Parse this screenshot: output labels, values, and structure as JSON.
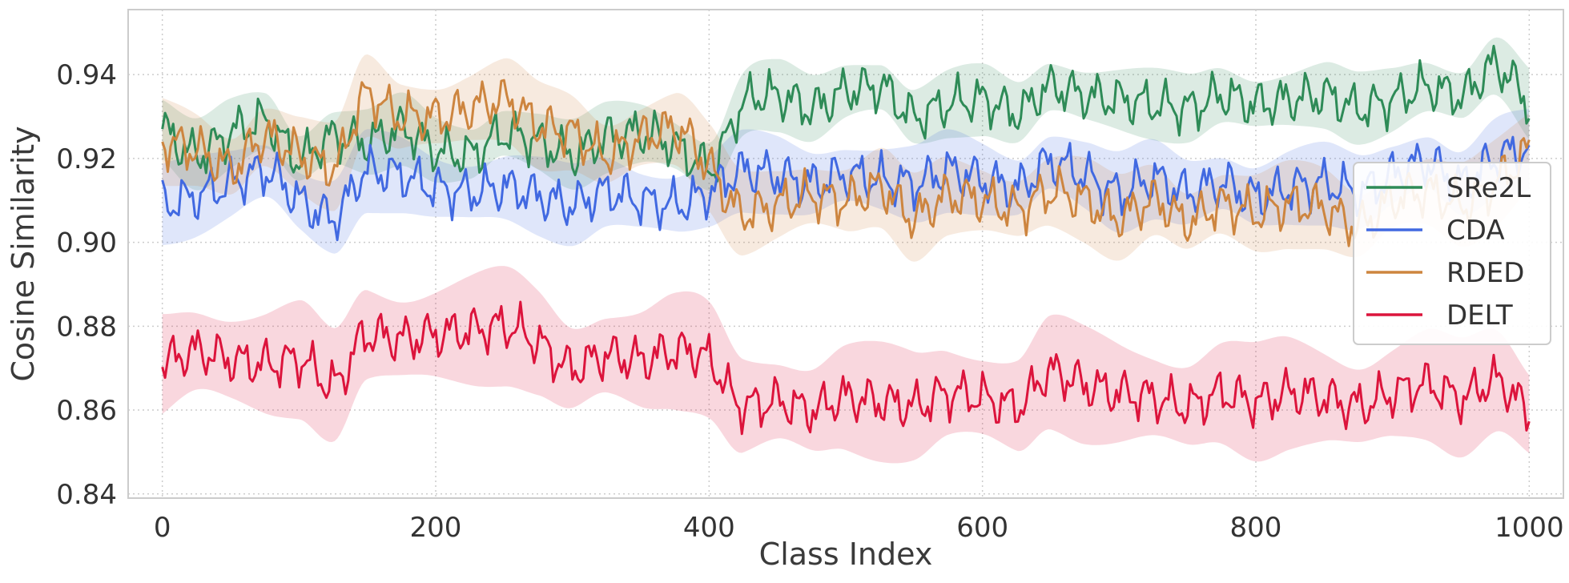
{
  "chart_data": {
    "type": "line",
    "title": "",
    "xlabel": "Class Index",
    "ylabel": "Cosine Similarity",
    "xlim": [
      -25,
      1025
    ],
    "ylim": [
      0.839,
      0.9555
    ],
    "xticks": [
      0,
      200,
      400,
      600,
      800,
      1000
    ],
    "xtick_labels": [
      "0",
      "200",
      "400",
      "600",
      "800",
      "1000"
    ],
    "yticks": [
      0.84,
      0.86,
      0.88,
      0.9,
      0.92,
      0.94
    ],
    "ytick_labels": [
      "0.84",
      "0.86",
      "0.88",
      "0.90",
      "0.92",
      "0.94"
    ],
    "grid": true,
    "grid_style": "dotted",
    "legend_position": "right",
    "shaded_band": "variability band around each series",
    "series": [
      {
        "name": "SRe2L",
        "color": "#2e8b57",
        "band_halfwidth": 0.007,
        "x": [
          0,
          25,
          50,
          75,
          100,
          125,
          150,
          175,
          200,
          225,
          250,
          275,
          300,
          325,
          350,
          375,
          400,
          425,
          450,
          475,
          500,
          525,
          550,
          575,
          600,
          625,
          650,
          675,
          700,
          725,
          750,
          775,
          800,
          825,
          850,
          875,
          900,
          925,
          950,
          975,
          1000
        ],
        "values": [
          0.927,
          0.921,
          0.926,
          0.929,
          0.92,
          0.925,
          0.924,
          0.927,
          0.922,
          0.921,
          0.926,
          0.924,
          0.921,
          0.925,
          0.926,
          0.923,
          0.918,
          0.933,
          0.935,
          0.932,
          0.936,
          0.937,
          0.93,
          0.933,
          0.934,
          0.931,
          0.937,
          0.935,
          0.934,
          0.933,
          0.932,
          0.935,
          0.933,
          0.934,
          0.935,
          0.932,
          0.934,
          0.937,
          0.935,
          0.942,
          0.933
        ]
      },
      {
        "name": "CDA",
        "color": "#4169e1",
        "band_halfwidth": 0.008,
        "x": [
          0,
          25,
          50,
          75,
          100,
          125,
          150,
          175,
          200,
          225,
          250,
          275,
          300,
          325,
          350,
          375,
          400,
          425,
          450,
          475,
          500,
          525,
          550,
          575,
          600,
          625,
          650,
          675,
          700,
          725,
          750,
          775,
          800,
          825,
          850,
          875,
          900,
          925,
          950,
          975,
          1000
        ],
        "values": [
          0.909,
          0.911,
          0.914,
          0.917,
          0.91,
          0.906,
          0.917,
          0.916,
          0.913,
          0.912,
          0.913,
          0.911,
          0.909,
          0.912,
          0.91,
          0.909,
          0.912,
          0.917,
          0.916,
          0.914,
          0.916,
          0.915,
          0.914,
          0.917,
          0.915,
          0.913,
          0.919,
          0.916,
          0.912,
          0.915,
          0.912,
          0.914,
          0.911,
          0.913,
          0.914,
          0.912,
          0.916,
          0.919,
          0.914,
          0.92,
          0.922
        ]
      },
      {
        "name": "RDED",
        "color": "#cd853f",
        "band_halfwidth": 0.0085,
        "x": [
          0,
          25,
          50,
          75,
          100,
          125,
          150,
          175,
          200,
          225,
          250,
          275,
          300,
          325,
          350,
          375,
          400,
          425,
          450,
          475,
          500,
          525,
          550,
          575,
          600,
          625,
          650,
          675,
          700,
          725,
          750,
          775,
          800,
          825,
          850,
          875,
          900,
          925,
          950,
          975,
          1000
        ],
        "values": [
          0.924,
          0.922,
          0.918,
          0.925,
          0.921,
          0.918,
          0.935,
          0.93,
          0.93,
          0.932,
          0.934,
          0.928,
          0.926,
          0.921,
          0.925,
          0.927,
          0.918,
          0.907,
          0.909,
          0.911,
          0.91,
          0.913,
          0.906,
          0.911,
          0.91,
          0.908,
          0.912,
          0.91,
          0.906,
          0.91,
          0.905,
          0.909,
          0.907,
          0.909,
          0.908,
          0.904,
          0.91,
          0.912,
          0.909,
          0.914,
          0.922
        ]
      },
      {
        "name": "DELT",
        "color": "#dc143c",
        "band_halfwidth": 0.0115,
        "x": [
          0,
          25,
          50,
          75,
          100,
          125,
          150,
          175,
          200,
          225,
          250,
          275,
          300,
          325,
          350,
          375,
          400,
          425,
          450,
          475,
          500,
          525,
          550,
          575,
          600,
          625,
          650,
          675,
          700,
          725,
          750,
          775,
          800,
          825,
          850,
          875,
          900,
          925,
          950,
          975,
          1000
        ],
        "values": [
          0.871,
          0.874,
          0.872,
          0.871,
          0.872,
          0.866,
          0.878,
          0.877,
          0.878,
          0.879,
          0.88,
          0.876,
          0.87,
          0.873,
          0.872,
          0.874,
          0.872,
          0.861,
          0.862,
          0.86,
          0.863,
          0.862,
          0.861,
          0.864,
          0.863,
          0.861,
          0.869,
          0.866,
          0.864,
          0.863,
          0.861,
          0.864,
          0.862,
          0.864,
          0.863,
          0.861,
          0.864,
          0.866,
          0.863,
          0.867,
          0.859
        ]
      }
    ]
  }
}
